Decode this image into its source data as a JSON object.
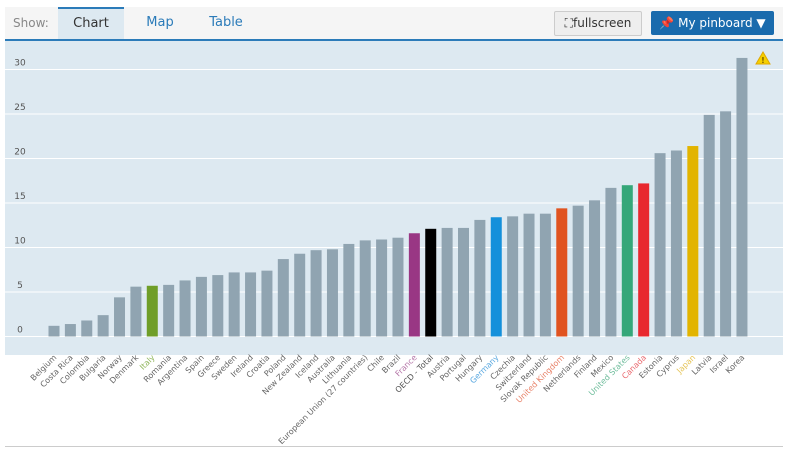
{
  "toolbar": {
    "show_label": "Show:",
    "tabs": [
      {
        "label": "Chart",
        "active": true
      },
      {
        "label": "Map"
      },
      {
        "label": "Table"
      }
    ],
    "fullscreen_label": "fullscreen",
    "pinboard_label": "My pinboard ▼"
  },
  "chart_data": {
    "type": "bar",
    "ylim": [
      -2,
      34
    ],
    "yticks": [
      0,
      5,
      10,
      15,
      20,
      25,
      30
    ],
    "grid": true,
    "default_color": "#90a4b1",
    "categories": [
      "Belgium",
      "Costa Rica",
      "Colombia",
      "Bulgaria",
      "Norway",
      "Denmark",
      "Italy",
      "Romania",
      "Argentina",
      "Spain",
      "Greece",
      "Sweden",
      "Ireland",
      "Croatia",
      "Poland",
      "New Zealand",
      "Iceland",
      "Australia",
      "Lithuania",
      "European Union (27 countries)",
      "Chile",
      "Brazil",
      "France",
      "OECD - Total",
      "Austria",
      "Portugal",
      "Hungary",
      "Germany",
      "Czechia",
      "Switzerland",
      "Slovak Republic",
      "United Kingdom",
      "Netherlands",
      "Finland",
      "Mexico",
      "United States",
      "Canada",
      "Estonia",
      "Cyprus",
      "Japan",
      "Latvia",
      "Israel",
      "Korea"
    ],
    "values": [
      1.2,
      1.4,
      1.8,
      2.4,
      4.4,
      5.6,
      5.7,
      5.8,
      6.3,
      6.7,
      6.9,
      7.2,
      7.2,
      7.4,
      8.7,
      9.3,
      9.7,
      9.8,
      10.4,
      10.8,
      10.9,
      11.1,
      11.6,
      12.1,
      12.2,
      12.2,
      13.1,
      13.4,
      13.5,
      13.8,
      13.8,
      14.4,
      14.7,
      15.3,
      16.7,
      17.0,
      17.2,
      20.6,
      20.9,
      21.4,
      24.9,
      25.3,
      31.3
    ],
    "highlight_colors": {
      "Italy": "#6f9e28",
      "France": "#993784",
      "OECD - Total": "#000000",
      "Germany": "#1490db",
      "United Kingdom": "#e05320",
      "United States": "#35a779",
      "Canada": "#e8282f",
      "Japan": "#e2b400"
    },
    "warning_icon": "warning-icon"
  }
}
